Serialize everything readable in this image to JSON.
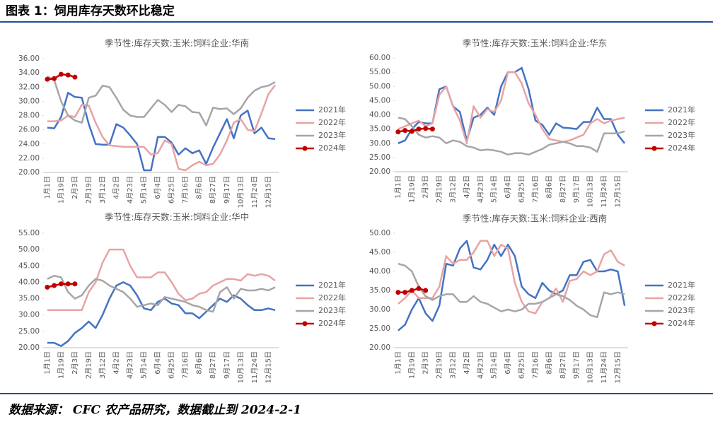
{
  "header": {
    "title": "图表 1：饲用库存天数环比稳定"
  },
  "source": "数据来源： CFC 农产品研究，数据截止到 2024-2-1",
  "chart_data": [
    {
      "type": "line",
      "title": "季节性:库存天数:玉米:饲料企业:华南",
      "legend": "right",
      "categories": [
        "1月1日",
        null,
        "1月19日",
        null,
        "2月3日",
        null,
        "2月19日",
        null,
        "3月12日",
        null,
        "4月2日",
        null,
        "4月23日",
        null,
        "5月14日",
        null,
        "6月4日",
        null,
        "6月25日",
        null,
        "7月16日",
        null,
        "8月6日",
        null,
        "8月27日",
        null,
        "9月17日",
        null,
        "10月13日",
        null,
        "11月24日",
        null,
        "12月15日",
        null
      ],
      "ylim": [
        20,
        36
      ],
      "yticks": [
        {
          "value": 20,
          "label": "20.00"
        },
        {
          "value": 22,
          "label": "22.00"
        },
        {
          "value": 24,
          "label": "24.00"
        },
        {
          "value": 26,
          "label": "26.00"
        },
        {
          "value": 28,
          "label": "28.00"
        },
        {
          "value": 30,
          "label": "30.00"
        },
        {
          "value": 32,
          "label": "32.00"
        },
        {
          "value": 34,
          "label": "34.00"
        },
        {
          "value": 36,
          "label": "36.00"
        }
      ],
      "series": [
        {
          "name": "2021年",
          "color": "#4472c4",
          "values": [
            26.3,
            26.2,
            27.8,
            31.2,
            30.6,
            30.5,
            26.8,
            24,
            23.9,
            23.9,
            26.8,
            26.3,
            25.2,
            24,
            20.3,
            20.3,
            25,
            25,
            24.2,
            22.5,
            23.4,
            22.7,
            23.1,
            21.2,
            23.5,
            25.5,
            27.5,
            24.8,
            28,
            28.7,
            25.5,
            26.3,
            24.8,
            24.7
          ]
        },
        {
          "name": "2022年",
          "color": "#e8a3a3",
          "values": [
            27.2,
            27.2,
            27.3,
            28,
            27.8,
            29.5,
            29.4,
            27,
            25,
            23.8,
            23.7,
            23.6,
            23.6,
            23.6,
            23.6,
            22.5,
            22.7,
            24.5,
            24,
            20.5,
            20.3,
            21,
            21.5,
            21,
            21.2,
            22.5,
            24.5,
            27,
            27.5,
            26,
            25.8,
            28.3,
            31,
            32.3
          ]
        },
        {
          "name": "2023年",
          "color": "#a6a6a6",
          "values": [
            33.5,
            33,
            30,
            28,
            27.3,
            27,
            30.5,
            30.8,
            32.2,
            32,
            30.5,
            28.8,
            28,
            27.8,
            27.8,
            29,
            30.2,
            29.5,
            28.5,
            29.5,
            29.3,
            28.5,
            28.4,
            26.6,
            29.1,
            28.9,
            29,
            28.2,
            29,
            30.5,
            31.5,
            32,
            32.2,
            32.7
          ]
        },
        {
          "name": "2024年",
          "color": "#c00000",
          "markers": true,
          "values": [
            33.1,
            33.2,
            33.8,
            33.7,
            33.4,
            null,
            null,
            null,
            null,
            null,
            null,
            null,
            null,
            null,
            null,
            null,
            null,
            null,
            null,
            null,
            null,
            null,
            null,
            null,
            null,
            null,
            null,
            null,
            null,
            null,
            null,
            null,
            null,
            null
          ]
        }
      ]
    },
    {
      "type": "line",
      "title": "季节性:库存天数:玉米:饲料企业:华东",
      "legend": "right",
      "categories": [
        "1月1日",
        null,
        "1月19日",
        null,
        "2月3日",
        null,
        "2月19日",
        null,
        "3月12日",
        null,
        "4月2日",
        null,
        "4月23日",
        null,
        "5月14日",
        null,
        "6月4日",
        null,
        "6月25日",
        null,
        "7月16日",
        null,
        "8月6日",
        null,
        "8月27日",
        null,
        "9月17日",
        null,
        "10月13日",
        null,
        "11月24日",
        null,
        "12月15日",
        null
      ],
      "ylim": [
        20,
        60
      ],
      "yticks": [
        {
          "value": 20,
          "label": "20.00"
        },
        {
          "value": 25,
          "label": "25.00"
        },
        {
          "value": 30,
          "label": "30.00"
        },
        {
          "value": 35,
          "label": "35.00"
        },
        {
          "value": 40,
          "label": "40.00"
        },
        {
          "value": 45,
          "label": "45.00"
        },
        {
          "value": 50,
          "label": "50.00"
        },
        {
          "value": 55,
          "label": "55.00"
        },
        {
          "value": 60,
          "label": "60.00"
        }
      ],
      "series": [
        {
          "name": "2021年",
          "color": "#4472c4",
          "values": [
            30,
            31,
            35,
            37.5,
            37,
            37,
            49,
            50,
            43,
            41,
            31,
            39,
            40,
            42.5,
            40,
            50,
            55,
            55,
            56.5,
            49,
            38,
            36.5,
            33,
            37,
            35.5,
            35.3,
            35,
            37.5,
            37.5,
            42.5,
            38.5,
            38.5,
            33,
            30
          ]
        },
        {
          "name": "2022年",
          "color": "#e8a3a3",
          "values": [
            35,
            36,
            37,
            38,
            36,
            37,
            47,
            50,
            43,
            38,
            30,
            43,
            39,
            42,
            41,
            45,
            55,
            55,
            51,
            44,
            40,
            35,
            31.5,
            31,
            30.5,
            31,
            32,
            33,
            37,
            38.5,
            37,
            38,
            38.5,
            39
          ]
        },
        {
          "name": "2023年",
          "color": "#a6a6a6",
          "values": [
            39,
            38.5,
            36,
            33,
            32,
            32.5,
            32,
            30,
            31,
            30.5,
            29,
            28.5,
            27.5,
            27.8,
            27.5,
            27,
            26,
            26.5,
            26.5,
            26,
            27,
            28,
            29.5,
            30,
            30.5,
            30,
            29,
            29,
            28.5,
            27,
            33.5,
            33.5,
            33.5,
            34.2
          ]
        },
        {
          "name": "2024年",
          "color": "#c00000",
          "markers": true,
          "values": [
            34,
            34.5,
            34.2,
            35,
            35.2,
            35,
            null,
            null,
            null,
            null,
            null,
            null,
            null,
            null,
            null,
            null,
            null,
            null,
            null,
            null,
            null,
            null,
            null,
            null,
            null,
            null,
            null,
            null,
            null,
            null,
            null,
            null,
            null,
            null
          ]
        }
      ]
    },
    {
      "type": "line",
      "title": "季节性:库存天数:玉米:饲料企业:华中",
      "legend": "right",
      "categories": [
        "1月1日",
        null,
        "1月19日",
        null,
        "2月3日",
        null,
        "2月19日",
        null,
        "3月12日",
        null,
        "4月2日",
        null,
        "4月23日",
        null,
        "5月14日",
        null,
        "6月4日",
        null,
        "6月25日",
        null,
        "7月16日",
        null,
        "8月6日",
        null,
        "8月27日",
        null,
        "9月17日",
        null,
        "10月13日",
        null,
        "11月24日",
        null,
        "12月15日",
        null
      ],
      "ylim": [
        20,
        55
      ],
      "yticks": [
        {
          "value": 20,
          "label": "20.00"
        },
        {
          "value": 25,
          "label": "25.00"
        },
        {
          "value": 30,
          "label": "30.00"
        },
        {
          "value": 35,
          "label": "35.00"
        },
        {
          "value": 40,
          "label": "40.00"
        },
        {
          "value": 45,
          "label": "45.00"
        },
        {
          "value": 50,
          "label": "50.00"
        },
        {
          "value": 55,
          "label": "55.00"
        }
      ],
      "series": [
        {
          "name": "2021年",
          "color": "#4472c4",
          "values": [
            21.5,
            21.5,
            20.5,
            22,
            24.5,
            26,
            28,
            26,
            30,
            35,
            39,
            40,
            39,
            36,
            32,
            31.5,
            34,
            35,
            33.5,
            33,
            30.5,
            30.5,
            29,
            31,
            33,
            35,
            34,
            36,
            35,
            33,
            31.5,
            31.5,
            32,
            31.5
          ]
        },
        {
          "name": "2022年",
          "color": "#e8a3a3",
          "values": [
            31.5,
            31.5,
            31.5,
            31.5,
            31.5,
            31.5,
            37,
            40,
            46,
            50,
            50,
            50,
            45,
            41.5,
            41.5,
            41.5,
            43,
            43,
            40,
            36.5,
            34.5,
            35,
            36.5,
            37,
            39,
            40,
            41,
            41,
            40.5,
            42.5,
            42,
            42.5,
            42,
            40.5
          ]
        },
        {
          "name": "2023年",
          "color": "#a6a6a6",
          "values": [
            41,
            42,
            41.5,
            37,
            35,
            36,
            39,
            41,
            40.5,
            39,
            38,
            37,
            35,
            32.5,
            33,
            33.5,
            33,
            35.5,
            35,
            34.5,
            34,
            33,
            32.5,
            31.5,
            31,
            37,
            38.5,
            35,
            38,
            37.5,
            37.5,
            38,
            37.5,
            38.5
          ]
        },
        {
          "name": "2024年",
          "color": "#c00000",
          "markers": true,
          "values": [
            38.5,
            39,
            39.5,
            39.5,
            39.5,
            null,
            null,
            null,
            null,
            null,
            null,
            null,
            null,
            null,
            null,
            null,
            null,
            null,
            null,
            null,
            null,
            null,
            null,
            null,
            null,
            null,
            null,
            null,
            null,
            null,
            null,
            null,
            null,
            null
          ]
        }
      ]
    },
    {
      "type": "line",
      "title": "季节性:库存天数:玉米:饲料企业:西南",
      "legend": "right",
      "categories": [
        "1月1日",
        null,
        "1月19日",
        null,
        "2月3日",
        null,
        "2月19日",
        null,
        "3月12日",
        null,
        "4月2日",
        null,
        "4月23日",
        null,
        "5月14日",
        null,
        "6月4日",
        null,
        "6月25日",
        null,
        "7月16日",
        null,
        "8月6日",
        null,
        "8月27日",
        null,
        "9月17日",
        null,
        "10月13日",
        null,
        "11月24日",
        null,
        "12月15日",
        null
      ],
      "ylim": [
        20,
        50
      ],
      "yticks": [
        {
          "value": 20,
          "label": "20.00"
        },
        {
          "value": 25,
          "label": "25.00"
        },
        {
          "value": 30,
          "label": "30.00"
        },
        {
          "value": 35,
          "label": "35.00"
        },
        {
          "value": 40,
          "label": "40.00"
        },
        {
          "value": 45,
          "label": "45.00"
        },
        {
          "value": 50,
          "label": "50.00"
        }
      ],
      "series": [
        {
          "name": "2021年",
          "color": "#4472c4",
          "values": [
            24.5,
            26,
            30,
            33,
            29,
            27,
            31,
            42,
            41.5,
            46,
            48,
            41,
            40.5,
            43,
            47,
            44,
            47,
            44,
            36,
            34,
            33,
            37,
            35,
            34,
            35,
            39,
            39,
            42.5,
            43,
            40,
            40,
            40.5,
            40,
            31
          ]
        },
        {
          "name": "2022年",
          "color": "#e8a3a3",
          "values": [
            31.5,
            33,
            35,
            33,
            33,
            33,
            36,
            44,
            42,
            43,
            43,
            45,
            48,
            48,
            44,
            47,
            46,
            37,
            32,
            29.5,
            29,
            32,
            33,
            35.5,
            32,
            37.5,
            38,
            40,
            39,
            40,
            44.5,
            45.5,
            42.5,
            41.5
          ]
        },
        {
          "name": "2023年",
          "color": "#a6a6a6",
          "values": [
            42,
            41.5,
            40,
            36,
            33.5,
            32.5,
            33.5,
            34,
            34,
            32,
            32,
            33.5,
            32,
            31.5,
            30.5,
            29.5,
            30,
            29.5,
            30,
            31.5,
            31.5,
            32,
            33,
            34,
            33.5,
            32.5,
            31,
            30,
            28.5,
            28,
            34.5,
            34,
            34.5,
            34
          ]
        },
        {
          "name": "2024年",
          "color": "#c00000",
          "markers": true,
          "values": [
            34.5,
            34.5,
            35,
            35.5,
            35,
            null,
            null,
            null,
            null,
            null,
            null,
            null,
            null,
            null,
            null,
            null,
            null,
            null,
            null,
            null,
            null,
            null,
            null,
            null,
            null,
            null,
            null,
            null,
            null,
            null,
            null,
            null,
            null,
            null
          ]
        }
      ]
    }
  ]
}
